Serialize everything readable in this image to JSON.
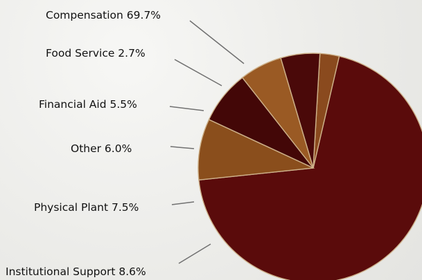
{
  "chart_data": {
    "type": "pie",
    "title": "",
    "slices": [
      {
        "label": "Compensation 69.7%",
        "value": 69.7,
        "color": "#5a0b0b"
      },
      {
        "label": "Food Service 2.7%",
        "value": 2.7,
        "color": "#8a4a1e"
      },
      {
        "label": "Financial Aid 5.5%",
        "value": 5.5,
        "color": "#4a0909"
      },
      {
        "label": "Other 6.0%",
        "value": 6.0,
        "color": "#9a5a24"
      },
      {
        "label": "Physical Plant 7.5%",
        "value": 7.5,
        "color": "#430707"
      },
      {
        "label": "Institutional Support 8.6%",
        "value": 8.6,
        "color": "#8a4e1c"
      }
    ]
  }
}
